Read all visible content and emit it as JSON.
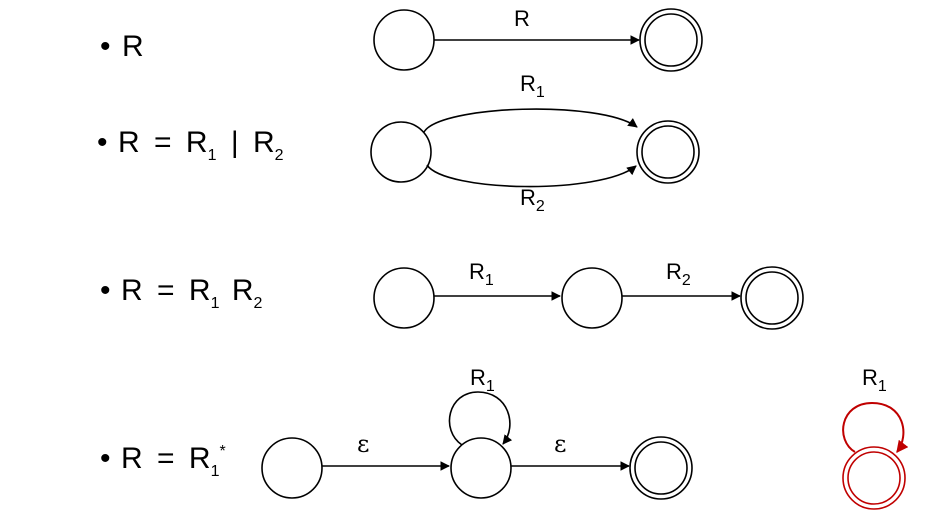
{
  "rules": [
    {
      "bullet": "•",
      "lhs": "R",
      "rhs": []
    },
    {
      "bullet": "•",
      "lhs": "R",
      "eq": "=",
      "rhs": [
        {
          "base": "R",
          "sub": "1"
        },
        {
          "op": "|"
        },
        {
          "base": "R",
          "sub": "2"
        }
      ]
    },
    {
      "bullet": "•",
      "lhs": "R",
      "eq": "=",
      "rhs": [
        {
          "base": "R",
          "sub": "1"
        },
        {
          "base": "R",
          "sub": "2"
        }
      ]
    },
    {
      "bullet": "•",
      "lhs": "R",
      "eq": "=",
      "rhs": [
        {
          "base": "R",
          "sub": "1",
          "sup": "*"
        }
      ]
    }
  ],
  "edge_labels": {
    "r": "R",
    "r1": {
      "base": "R",
      "sub": "1"
    },
    "r2": {
      "base": "R",
      "sub": "2"
    },
    "epsilon": "ε"
  },
  "colors": {
    "ink": "#000000",
    "highlight": "#c00000"
  }
}
